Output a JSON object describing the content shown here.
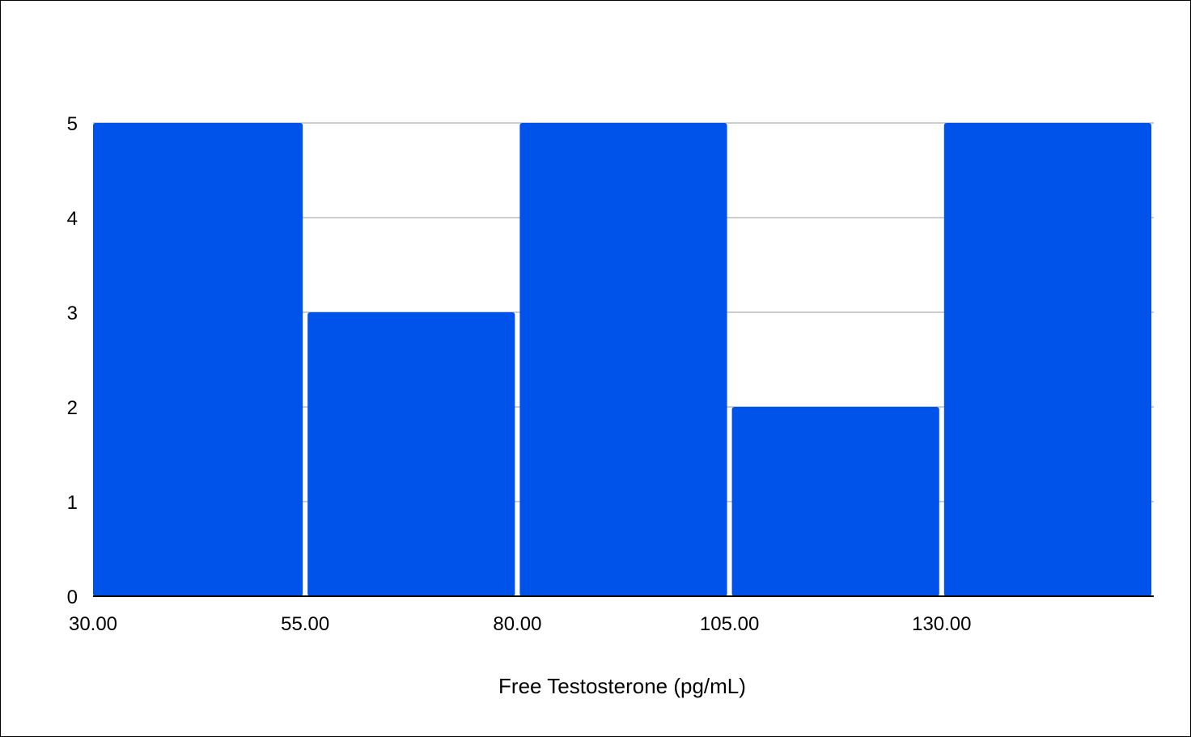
{
  "chart_data": {
    "type": "bar",
    "title": "",
    "xlabel": "Free Testosterone (pg/mL)",
    "ylabel": "",
    "bins": [
      {
        "start": 30,
        "end": 55,
        "count": 5
      },
      {
        "start": 55,
        "end": 80,
        "count": 3
      },
      {
        "start": 80,
        "end": 105,
        "count": 5
      },
      {
        "start": 105,
        "end": 130,
        "count": 2
      },
      {
        "start": 130,
        "end": 155,
        "count": 5
      }
    ],
    "values": [
      5,
      3,
      5,
      2,
      5
    ],
    "x_tick_labels": [
      "30.00",
      "55.00",
      "80.00",
      "105.00",
      "130.00"
    ],
    "x_tick_values": [
      30,
      55,
      80,
      105,
      130
    ],
    "y_tick_labels": [
      "0",
      "1",
      "2",
      "3",
      "4",
      "5"
    ],
    "y_tick_values": [
      0,
      1,
      2,
      3,
      4,
      5
    ],
    "xlim": [
      30,
      155
    ],
    "ylim": [
      0,
      5
    ],
    "grid": true,
    "legend": "none",
    "colors": {
      "bar": "#0053EA",
      "grid": "#CCCCCC",
      "axis": "#000000"
    }
  }
}
